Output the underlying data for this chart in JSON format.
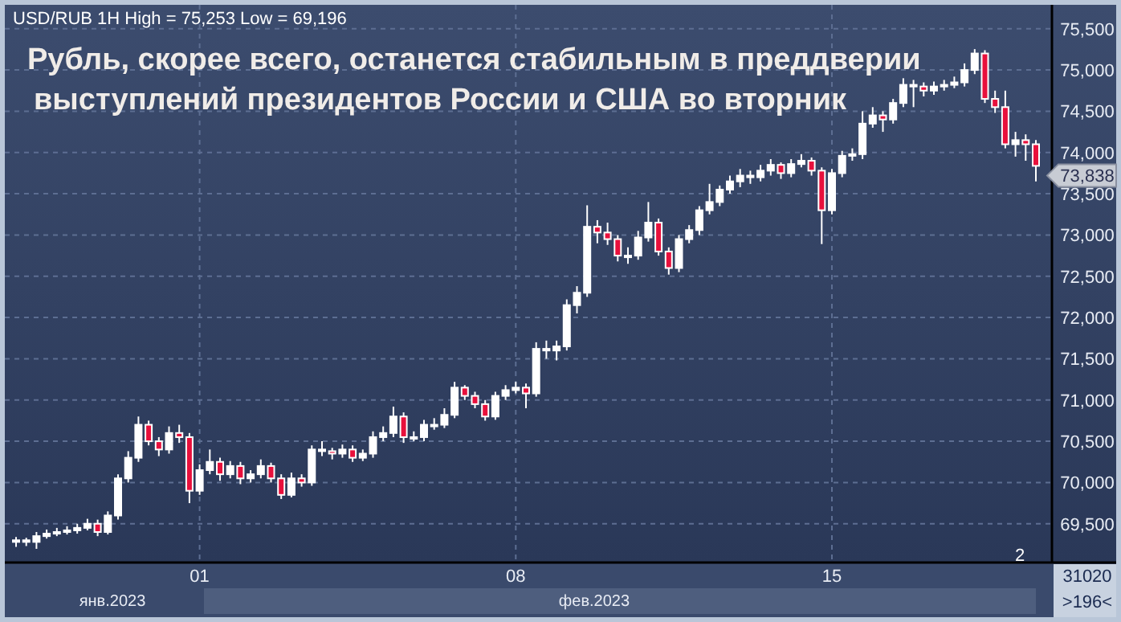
{
  "chart_data": {
    "type": "candlestick",
    "title": "Рубль, скорее всего, останется стабильным в преддверии выступлений президентов России и США во вторник",
    "subtitle": "USD/RUB 1H High = 75,253 Low = 69,196",
    "categories": [
      null,
      null,
      null,
      null,
      null,
      null,
      null,
      null,
      null,
      null,
      null,
      null,
      null,
      null,
      null,
      null,
      null,
      null,
      "01",
      null,
      null,
      null,
      null,
      null,
      null,
      null,
      null,
      null,
      null,
      null,
      null,
      null,
      null,
      null,
      null,
      null,
      null,
      null,
      null,
      null,
      null,
      null,
      null,
      null,
      null,
      null,
      null,
      null,
      null,
      "08",
      null,
      null,
      null,
      null,
      null,
      null,
      null,
      null,
      null,
      null,
      null,
      null,
      null,
      null,
      null,
      null,
      null,
      null,
      null,
      null,
      null,
      null,
      null,
      null,
      null,
      null,
      null,
      null,
      null,
      null,
      "15",
      null,
      null,
      null,
      null,
      null,
      null,
      null,
      null,
      null,
      null,
      null,
      null,
      null,
      null,
      null,
      null,
      null,
      null,
      null,
      null
    ],
    "ohlc": [
      [
        69280,
        69340,
        69220,
        69300
      ],
      [
        69300,
        69330,
        69230,
        69280
      ],
      [
        69280,
        69400,
        69196,
        69350
      ],
      [
        69350,
        69430,
        69320,
        69380
      ],
      [
        69380,
        69450,
        69350,
        69400
      ],
      [
        69400,
        69470,
        69370,
        69420
      ],
      [
        69420,
        69500,
        69380,
        69450
      ],
      [
        69450,
        69560,
        69420,
        69500
      ],
      [
        69500,
        69550,
        69350,
        69400
      ],
      [
        69400,
        69650,
        69370,
        69600
      ],
      [
        69600,
        70100,
        69550,
        70050
      ],
      [
        70050,
        70380,
        70000,
        70300
      ],
      [
        70300,
        70800,
        70250,
        70700
      ],
      [
        70700,
        70750,
        70450,
        70500
      ],
      [
        70500,
        70550,
        70320,
        70400
      ],
      [
        70400,
        70680,
        70350,
        70600
      ],
      [
        70600,
        70700,
        70480,
        70550
      ],
      [
        70550,
        70600,
        69750,
        69900
      ],
      [
        69900,
        70220,
        69850,
        70150
      ],
      [
        70150,
        70400,
        70100,
        70250
      ],
      [
        70250,
        70300,
        70020,
        70100
      ],
      [
        70100,
        70260,
        70050,
        70200
      ],
      [
        70200,
        70250,
        69980,
        70050
      ],
      [
        70050,
        70150,
        70000,
        70100
      ],
      [
        70100,
        70280,
        70050,
        70200
      ],
      [
        70200,
        70240,
        70000,
        70050
      ],
      [
        70050,
        70100,
        69800,
        69850
      ],
      [
        69850,
        70120,
        69820,
        70050
      ],
      [
        70050,
        70100,
        69950,
        70000
      ],
      [
        70000,
        70450,
        69960,
        70400
      ],
      [
        70400,
        70500,
        70320,
        70380
      ],
      [
        70380,
        70420,
        70280,
        70350
      ],
      [
        70350,
        70460,
        70300,
        70400
      ],
      [
        70400,
        70450,
        70250,
        70300
      ],
      [
        70300,
        70400,
        70260,
        70350
      ],
      [
        70350,
        70620,
        70300,
        70550
      ],
      [
        70550,
        70680,
        70500,
        70600
      ],
      [
        70600,
        70920,
        70550,
        70800
      ],
      [
        70800,
        70850,
        70480,
        70550
      ],
      [
        70550,
        70620,
        70500,
        70550
      ],
      [
        70550,
        70760,
        70500,
        70700
      ],
      [
        70700,
        70780,
        70640,
        70700
      ],
      [
        70700,
        70900,
        70660,
        70820
      ],
      [
        70820,
        71220,
        70780,
        71150
      ],
      [
        71150,
        71180,
        71000,
        71050
      ],
      [
        71050,
        71100,
        70900,
        70950
      ],
      [
        70950,
        71000,
        70750,
        70800
      ],
      [
        70800,
        71100,
        70760,
        71050
      ],
      [
        71050,
        71180,
        71000,
        71120
      ],
      [
        71120,
        71220,
        71080,
        71150
      ],
      [
        71150,
        71200,
        70900,
        71080
      ],
      [
        71080,
        71700,
        71040,
        71620
      ],
      [
        71620,
        71720,
        71500,
        71600
      ],
      [
        71600,
        71720,
        71480,
        71650
      ],
      [
        71650,
        72220,
        71600,
        72150
      ],
      [
        72150,
        72380,
        72050,
        72300
      ],
      [
        72300,
        73360,
        72250,
        73100
      ],
      [
        73100,
        73180,
        72900,
        73030
      ],
      [
        73030,
        73150,
        72880,
        72950
      ],
      [
        72950,
        73000,
        72680,
        72750
      ],
      [
        72750,
        72850,
        72650,
        72750
      ],
      [
        72750,
        73050,
        72700,
        72970
      ],
      [
        72970,
        73400,
        72920,
        73150
      ],
      [
        73150,
        73200,
        72750,
        72800
      ],
      [
        72800,
        72850,
        72520,
        72600
      ],
      [
        72600,
        73000,
        72550,
        72950
      ],
      [
        72950,
        73120,
        72900,
        73060
      ],
      [
        73060,
        73350,
        73000,
        73300
      ],
      [
        73300,
        73620,
        73250,
        73400
      ],
      [
        73400,
        73600,
        73350,
        73550
      ],
      [
        73550,
        73720,
        73500,
        73650
      ],
      [
        73650,
        73800,
        73580,
        73720
      ],
      [
        73720,
        73780,
        73620,
        73700
      ],
      [
        73700,
        73850,
        73650,
        73780
      ],
      [
        73780,
        73920,
        73720,
        73850
      ],
      [
        73850,
        73880,
        73680,
        73750
      ],
      [
        73750,
        73920,
        73700,
        73860
      ],
      [
        73860,
        73980,
        73820,
        73900
      ],
      [
        73900,
        73940,
        73720,
        73780
      ],
      [
        73780,
        73820,
        72890,
        73300
      ],
      [
        73300,
        73800,
        73250,
        73750
      ],
      [
        73750,
        74020,
        73700,
        73960
      ],
      [
        73960,
        74050,
        73900,
        73980
      ],
      [
        73980,
        74500,
        73920,
        74350
      ],
      [
        74350,
        74550,
        74300,
        74450
      ],
      [
        74450,
        74500,
        74250,
        74400
      ],
      [
        74400,
        74650,
        74350,
        74600
      ],
      [
        74600,
        74900,
        74550,
        74820
      ],
      [
        74820,
        74880,
        74550,
        74800
      ],
      [
        74800,
        74850,
        74680,
        74750
      ],
      [
        74750,
        74860,
        74700,
        74800
      ],
      [
        74800,
        74880,
        74750,
        74820
      ],
      [
        74820,
        74920,
        74780,
        74850
      ],
      [
        74850,
        75080,
        74800,
        75000
      ],
      [
        75000,
        75253,
        74950,
        75200
      ],
      [
        75200,
        75240,
        74600,
        74650
      ],
      [
        74650,
        74750,
        74480,
        74550
      ],
      [
        74550,
        74750,
        74050,
        74100
      ],
      [
        74100,
        74250,
        73950,
        74150
      ],
      [
        74150,
        74220,
        73900,
        74100
      ],
      [
        74100,
        74150,
        73650,
        73838
      ]
    ],
    "colors": [
      "#ffffff",
      "#e8103c",
      "#ffffff",
      "#ffffff",
      "#ffffff",
      "#ffffff",
      "#ffffff",
      "#ffffff",
      "#e8103c",
      "#ffffff",
      "#ffffff",
      "#ffffff",
      "#ffffff",
      "#e8103c",
      "#e8103c",
      "#ffffff",
      "#e8103c",
      "#e8103c",
      "#ffffff",
      "#ffffff",
      "#e8103c",
      "#ffffff",
      "#e8103c",
      "#ffffff",
      "#ffffff",
      "#e8103c",
      "#e8103c",
      "#ffffff",
      "#e8103c",
      "#ffffff",
      "#ffffff",
      "#e8103c",
      "#ffffff",
      "#e8103c",
      "#ffffff",
      "#ffffff",
      "#ffffff",
      "#ffffff",
      "#e8103c",
      "#ffffff",
      "#ffffff",
      "#ffffff",
      "#ffffff",
      "#ffffff",
      "#e8103c",
      "#e8103c",
      "#e8103c",
      "#ffffff",
      "#ffffff",
      "#ffffff",
      "#e8103c",
      "#ffffff",
      "#e8103c",
      "#ffffff",
      "#ffffff",
      "#ffffff",
      "#ffffff",
      "#e8103c",
      "#e8103c",
      "#e8103c",
      "#ffffff",
      "#ffffff",
      "#ffffff",
      "#e8103c",
      "#e8103c",
      "#ffffff",
      "#ffffff",
      "#ffffff",
      "#ffffff",
      "#ffffff",
      "#ffffff",
      "#ffffff",
      "#e8103c",
      "#ffffff",
      "#ffffff",
      "#e8103c",
      "#ffffff",
      "#ffffff",
      "#e8103c",
      "#e8103c",
      "#ffffff",
      "#ffffff",
      "#ffffff",
      "#ffffff",
      "#ffffff",
      "#e8103c",
      "#ffffff",
      "#ffffff",
      "#e8103c",
      "#e8103c",
      "#ffffff",
      "#ffffff",
      "#ffffff",
      "#ffffff",
      "#ffffff",
      "#e8103c",
      "#e8103c",
      "#e8103c",
      "#ffffff",
      "#e8103c",
      "#e8103c"
    ],
    "ylim": [
      69030,
      75790
    ],
    "yticks": [
      {
        "value": 69500,
        "label": "69,500"
      },
      {
        "value": 70000,
        "label": "70,000"
      },
      {
        "value": 70500,
        "label": "70,500"
      },
      {
        "value": 71000,
        "label": "71,000"
      },
      {
        "value": 71500,
        "label": "71,500"
      },
      {
        "value": 72000,
        "label": "72,000"
      },
      {
        "value": 72500,
        "label": "72,500"
      },
      {
        "value": 73000,
        "label": "73,000"
      },
      {
        "value": 73500,
        "label": "73,500"
      },
      {
        "value": 74000,
        "label": "74,000"
      },
      {
        "value": 74500,
        "label": "74,500"
      },
      {
        "value": 75000,
        "label": "75,000"
      },
      {
        "value": 75500,
        "label": "75,500"
      }
    ],
    "grid": true,
    "annotations": [
      "73,838",
      "янв.2023",
      "фев.2023",
      "2",
      "31020",
      ">196<"
    ]
  }
}
